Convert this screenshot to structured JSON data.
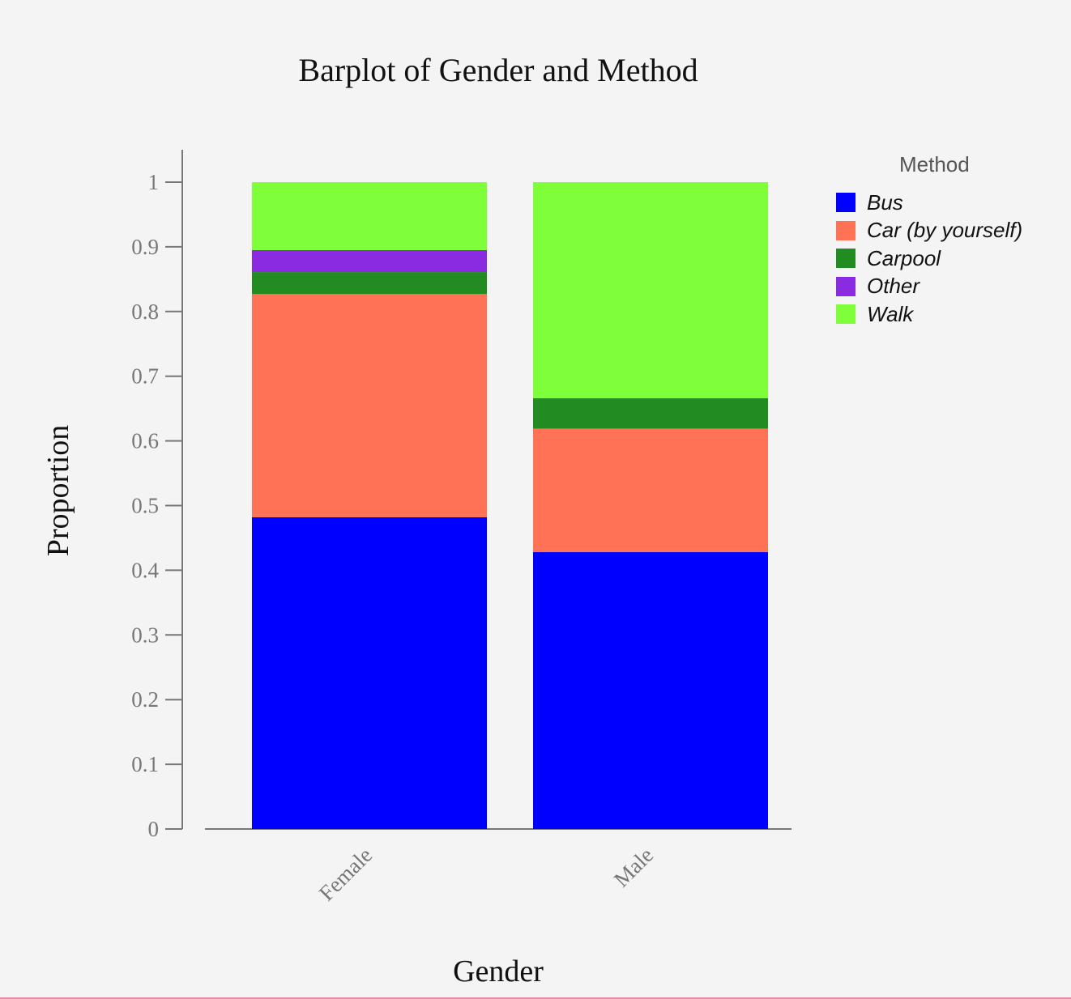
{
  "chart_data": {
    "type": "bar",
    "stacked": true,
    "title": "Barplot of Gender and Method",
    "xlabel": "Gender",
    "ylabel": "Proportion",
    "ylim": [
      0,
      1
    ],
    "yticks": [
      "0",
      "0.1",
      "0.2",
      "0.3",
      "0.4",
      "0.5",
      "0.6",
      "0.7",
      "0.8",
      "0.9",
      "1"
    ],
    "categories": [
      "Female",
      "Male"
    ],
    "grid": false,
    "legend": {
      "title": "Method",
      "placement": "right"
    },
    "series": [
      {
        "name": "Bus",
        "color": "#0000ff",
        "values": [
          0.482,
          0.428
        ]
      },
      {
        "name": "Car (by yourself)",
        "color": "#ff7256",
        "values": [
          0.345,
          0.191
        ]
      },
      {
        "name": "Carpool",
        "color": "#228b22",
        "values": [
          0.034,
          0.047
        ]
      },
      {
        "name": "Other",
        "color": "#8a2be2",
        "values": [
          0.034,
          0.0
        ]
      },
      {
        "name": "Walk",
        "color": "#7fff3a",
        "values": [
          0.105,
          0.334
        ]
      }
    ]
  }
}
